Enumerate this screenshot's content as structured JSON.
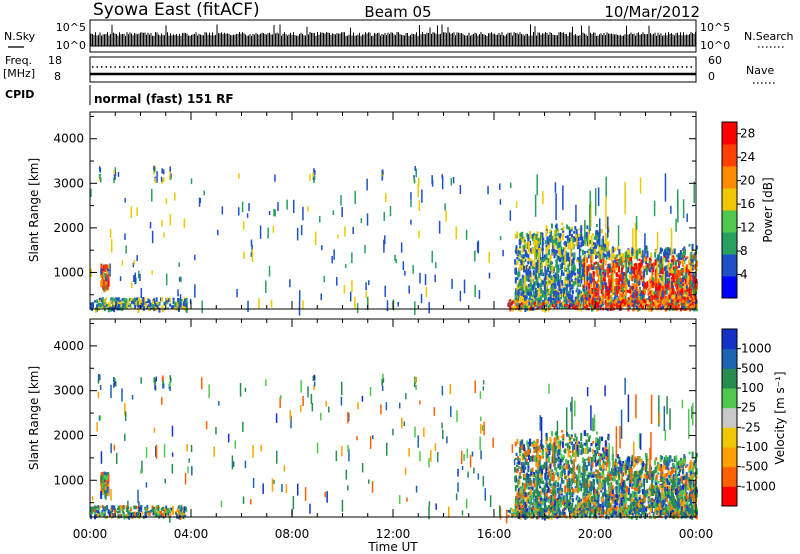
{
  "header": {
    "station": "Syowa East (fitACF)",
    "beam": "Beam 05",
    "date": "10/Mar/2012"
  },
  "top_panels": {
    "nsky_label": "N.Sky",
    "nsearch_label": "N.Search",
    "nsky_ticks": [
      "10^5",
      "10^0"
    ],
    "nsearch_ticks": [
      "10^5",
      "10^0"
    ],
    "freq_label_line1": "Freq.",
    "freq_label_line2": "[MHz]",
    "freq_ticks": [
      "18",
      "8"
    ],
    "nave_label": "Nave",
    "nave_ticks": [
      "60",
      "0"
    ],
    "cpid_label": "CPID",
    "cpid_value": "normal (fast) 151 RF"
  },
  "chart_data": [
    {
      "type": "heatmap",
      "title": "",
      "quantity": "Power",
      "xlabel": "",
      "ylabel": "Slant Range [km]",
      "x_ticks": [
        "00:00",
        "04:00",
        "08:00",
        "12:00",
        "16:00",
        "20:00",
        "00:00"
      ],
      "y_ticks": [
        "1000",
        "2000",
        "3000",
        "4000"
      ],
      "ylim": [
        180,
        4600
      ],
      "colorbar": {
        "label": "Power [dB]",
        "ticks": [
          "4",
          "8",
          "12",
          "16",
          "20",
          "24",
          "28"
        ],
        "range": [
          0,
          30
        ],
        "colors": [
          "#0000ff",
          "#1e50c8",
          "#28a060",
          "#50c850",
          "#f0c800",
          "#ff8c00",
          "#ff4000",
          "#ff0000"
        ]
      },
      "activity": [
        {
          "hours": [
            16.8,
            24.0
          ],
          "range_km": [
            300,
            2400
          ],
          "level": "high"
        },
        {
          "hours": [
            0.0,
            3.5
          ],
          "range_km": [
            180,
            1300
          ],
          "level": "low"
        }
      ]
    },
    {
      "type": "heatmap",
      "title": "",
      "quantity": "Velocity",
      "xlabel": "Time UT",
      "ylabel": "Slant Range [km]",
      "x_ticks": [
        "00:00",
        "04:00",
        "08:00",
        "12:00",
        "16:00",
        "20:00",
        "00:00"
      ],
      "y_ticks": [
        "1000",
        "2000",
        "3000",
        "4000"
      ],
      "ylim": [
        180,
        4600
      ],
      "colorbar": {
        "label": "Velocity [m s⁻¹]",
        "ticks": [
          "1000",
          "500",
          "100",
          "25",
          "-25",
          "-100",
          "-500",
          "-1000"
        ],
        "range": [
          -1200,
          1200
        ],
        "colors": [
          "#ff0000",
          "#ff6000",
          "#ffa000",
          "#f0c800",
          "#c8c8c8",
          "#50c850",
          "#288c50",
          "#1e64b4",
          "#1432c8"
        ]
      },
      "activity": [
        {
          "hours": [
            16.8,
            24.0
          ],
          "range_km": [
            300,
            2400
          ],
          "level": "high"
        },
        {
          "hours": [
            0.0,
            3.5
          ],
          "range_km": [
            180,
            1300
          ],
          "level": "low"
        }
      ]
    }
  ]
}
